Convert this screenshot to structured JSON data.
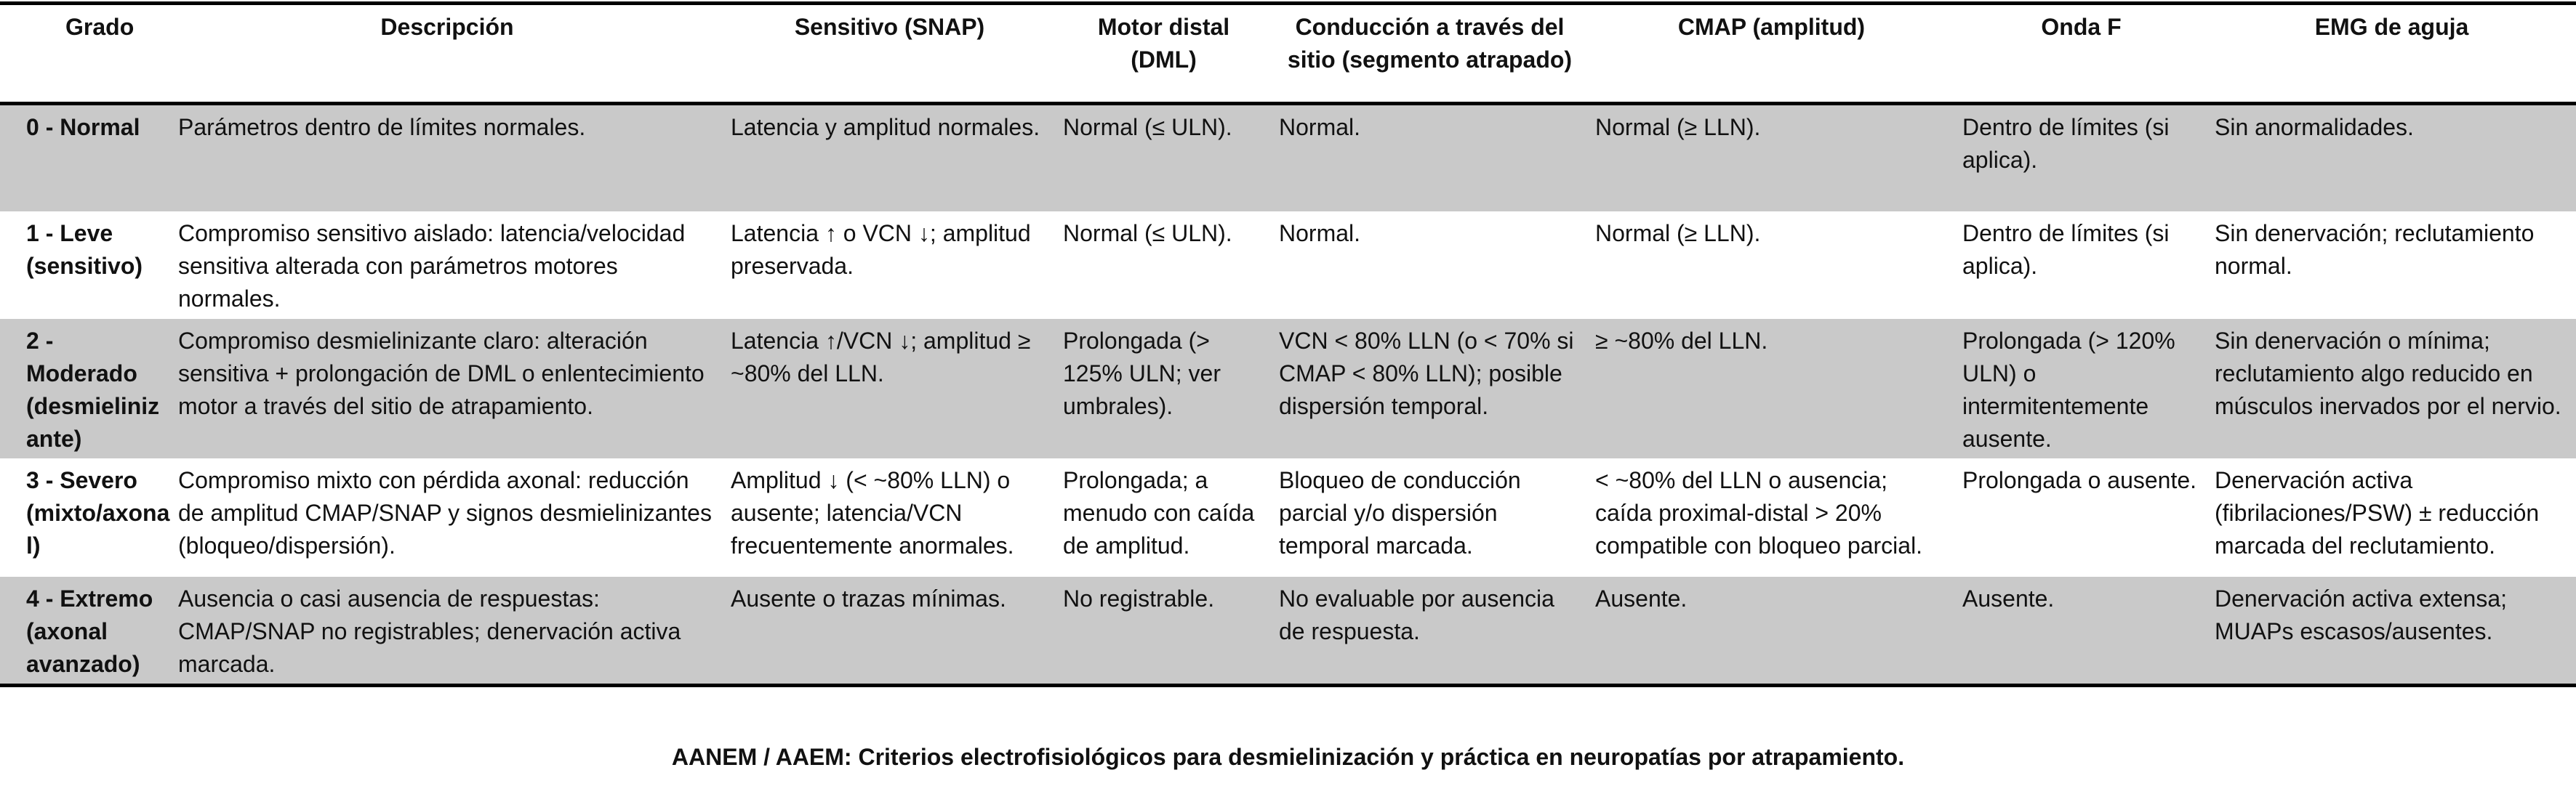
{
  "table": {
    "headers": [
      "Grado",
      "Descripción",
      "Sensitivo (SNAP)",
      "Motor distal (DML)",
      "Conducción a través del sitio (segmento atrapado)",
      "CMAP (amplitud)",
      "Onda F",
      "EMG de aguja"
    ],
    "rows": [
      {
        "grado": "0 - Normal",
        "descripcion": "Parámetros dentro de límites normales.",
        "sensitivo": "Latencia y amplitud normales.",
        "motor": "Normal (≤ ULN).",
        "conduccion": "Normal.",
        "cmap": "Normal (≥ LLN).",
        "onda_f": "Dentro de límites (si aplica).",
        "emg": "Sin anormalidades."
      },
      {
        "grado": "1 - Leve (sensitivo)",
        "descripcion": "Compromiso sensitivo aislado: latencia/velocidad sensitiva alterada con parámetros motores normales.",
        "sensitivo": "Latencia ↑ o VCN ↓; amplitud preservada.",
        "motor": "Normal (≤ ULN).",
        "conduccion": "Normal.",
        "cmap": "Normal (≥ LLN).",
        "onda_f": "Dentro de límites (si aplica).",
        "emg": "Sin denervación; reclutamiento normal."
      },
      {
        "grado": "2 - Moderado (desmielinizante)",
        "descripcion": "Compromiso desmielinizante claro: alteración sensitiva + prolongación de DML o enlentecimiento motor a través del sitio de atrapamiento.",
        "sensitivo": "Latencia ↑/VCN ↓; amplitud ≥ ~80% del LLN.",
        "motor": "Prolongada (> 125% ULN; ver umbrales).",
        "conduccion": "VCN < 80% LLN (o < 70% si CMAP < 80% LLN); posible dispersión temporal.",
        "cmap": "≥ ~80% del LLN.",
        "onda_f": "Prolongada (> 120% ULN) o intermitentemente ausente.",
        "emg": "Sin denervación o mínima; reclutamiento algo reducido en músculos inervados por el nervio."
      },
      {
        "grado": "3 - Severo (mixto/axonal)",
        "descripcion": "Compromiso mixto con pérdida axonal: reducción de amplitud CMAP/SNAP y signos desmielinizantes (bloqueo/dispersión).",
        "sensitivo": "Amplitud ↓ (< ~80% LLN) o ausente; latencia/VCN frecuentemente anormales.",
        "motor": "Prolongada; a menudo con caída de amplitud.",
        "conduccion": "Bloqueo de conducción parcial y/o dispersión temporal marcada.",
        "cmap": "< ~80% del LLN o ausencia; caída proximal-distal > 20% compatible con bloqueo parcial.",
        "onda_f": "Prolongada o ausente.",
        "emg": "Denervación activa (fibrilaciones/PSW) ± reducción marcada del reclutamiento."
      },
      {
        "grado": "4 - Extremo (axonal avanzado)",
        "descripcion": "Ausencia o casi ausencia de respuestas: CMAP/SNAP no registrables; denervación activa marcada.",
        "sensitivo": "Ausente o trazas mínimas.",
        "motor": "No registrable.",
        "conduccion": "No evaluable por ausencia de respuesta.",
        "cmap": "Ausente.",
        "onda_f": "Ausente.",
        "emg": "Denervación activa extensa; MUAPs escasos/ausentes."
      }
    ]
  },
  "source": "AANEM / AAEM: Criterios electrofisiológicos para desmielinización y práctica en neuropatías por atrapamiento."
}
